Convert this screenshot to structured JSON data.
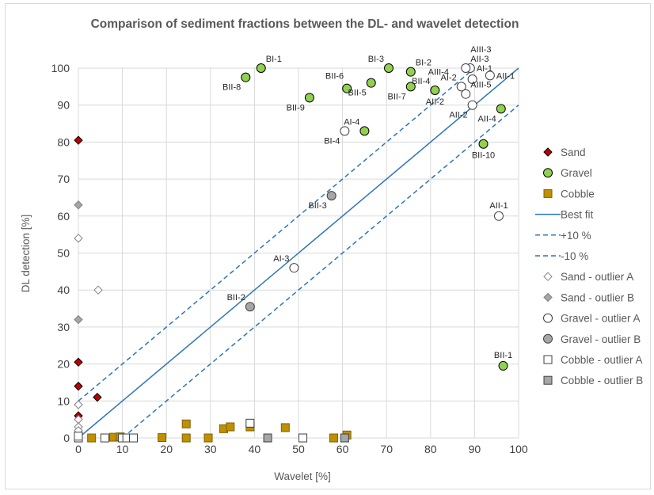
{
  "chart_data": {
    "type": "scatter",
    "title": "Comparison of sediment fractions between the DL- and wavelet detection",
    "xlabel": "Wavelet [%]",
    "ylabel": "DL detection [%]",
    "xlim": [
      0,
      100
    ],
    "ylim": [
      0,
      100
    ],
    "x_ticks": [
      "0",
      "10",
      "20",
      "30",
      "40",
      "50",
      "60",
      "70",
      "80",
      "90",
      "100"
    ],
    "y_ticks": [
      "0",
      "10",
      "20",
      "30",
      "40",
      "50",
      "60",
      "70",
      "80",
      "90",
      "100"
    ],
    "grid": true,
    "legend_position": "right",
    "series": [
      {
        "name": "Sand",
        "marker": "diamond",
        "fill": "#c00000",
        "stroke": "#000000",
        "points": [
          [
            0,
            80.5
          ],
          [
            0,
            20.5
          ],
          [
            0,
            14
          ],
          [
            4.3,
            11
          ],
          [
            0,
            6
          ]
        ]
      },
      {
        "name": "Gravel",
        "marker": "circle",
        "fill": "#92d050",
        "stroke": "#000000",
        "points": [
          [
            38,
            97.5
          ],
          [
            41.5,
            100
          ],
          [
            52.5,
            92
          ],
          [
            61,
            94.5
          ],
          [
            66.5,
            96
          ],
          [
            65,
            83
          ],
          [
            70.5,
            100
          ],
          [
            75.5,
            99
          ],
          [
            75.5,
            95
          ],
          [
            81,
            94
          ],
          [
            96,
            89
          ],
          [
            92,
            79.5
          ],
          [
            96.5,
            19.5
          ]
        ]
      },
      {
        "name": "Cobble",
        "marker": "square",
        "fill": "#bf9000",
        "stroke": "#7f6000",
        "points": [
          [
            3,
            0
          ],
          [
            8,
            0.2
          ],
          [
            9.5,
            0.3
          ],
          [
            19,
            0.1
          ],
          [
            24.5,
            0
          ],
          [
            24.5,
            3.8
          ],
          [
            29.5,
            0
          ],
          [
            33,
            2.5
          ],
          [
            34.5,
            3
          ],
          [
            39,
            3
          ],
          [
            47,
            2.8
          ],
          [
            58,
            0
          ],
          [
            61,
            0.8
          ]
        ]
      },
      {
        "name": "Best fit",
        "line": "solid",
        "color": "#2e75b6",
        "points": [
          [
            0,
            0
          ],
          [
            100,
            100
          ]
        ]
      },
      {
        "name": "+10 %",
        "line": "dashed",
        "color": "#2e75b6",
        "points": [
          [
            0,
            10
          ],
          [
            90,
            100
          ]
        ]
      },
      {
        "name": "-10 %",
        "line": "dashed",
        "color": "#2e75b6",
        "points": [
          [
            10,
            0
          ],
          [
            100,
            90
          ]
        ]
      },
      {
        "name": "Sand - outlier A",
        "marker": "diamond",
        "fill": "#ffffff",
        "stroke": "#7f7f7f",
        "points": [
          [
            0,
            54
          ],
          [
            4.5,
            40
          ],
          [
            0,
            9
          ],
          [
            0,
            5
          ],
          [
            0,
            3
          ],
          [
            0,
            2
          ]
        ]
      },
      {
        "name": "Sand - outlier B",
        "marker": "diamond",
        "fill": "#a6a6a6",
        "stroke": "#7f7f7f",
        "points": [
          [
            0,
            63
          ],
          [
            0,
            32
          ]
        ]
      },
      {
        "name": "Gravel - outlier A",
        "marker": "circle",
        "fill": "#ffffff",
        "stroke": "#404040",
        "points": [
          [
            60.5,
            83
          ],
          [
            49,
            46
          ],
          [
            87,
            95
          ],
          [
            88,
            93
          ],
          [
            89.5,
            90
          ],
          [
            89.5,
            97
          ],
          [
            93.5,
            98
          ],
          [
            89,
            100
          ],
          [
            88,
            100
          ],
          [
            95.5,
            60
          ]
        ]
      },
      {
        "name": "Gravel - outlier B",
        "marker": "circle",
        "fill": "#a6a6a6",
        "stroke": "#404040",
        "points": [
          [
            57.5,
            65.5
          ],
          [
            39,
            35.5
          ]
        ]
      },
      {
        "name": "Cobble - outlier A",
        "marker": "square",
        "fill": "#ffffff",
        "stroke": "#404040",
        "points": [
          [
            0,
            0
          ],
          [
            0,
            0.5
          ],
          [
            6,
            0
          ],
          [
            10,
            0
          ],
          [
            11,
            0
          ],
          [
            12.5,
            0
          ],
          [
            39,
            4
          ],
          [
            51,
            0
          ]
        ]
      },
      {
        "name": "Cobble - outlier B",
        "marker": "square",
        "fill": "#a6a6a6",
        "stroke": "#404040",
        "points": [
          [
            43,
            0
          ],
          [
            60.5,
            0
          ]
        ]
      }
    ],
    "annotations": [
      {
        "text": "BI-1",
        "x": 41.5,
        "y": 100,
        "pos": "ur"
      },
      {
        "text": "BII-8",
        "x": 38,
        "y": 97.5,
        "pos": "bl"
      },
      {
        "text": "BII-9",
        "x": 52.5,
        "y": 92,
        "pos": "bl"
      },
      {
        "text": "BII-6",
        "x": 61,
        "y": 94.5,
        "pos": "tl"
      },
      {
        "text": "BII-5",
        "x": 66.5,
        "y": 96,
        "pos": "bl"
      },
      {
        "text": "BI-3",
        "x": 70.5,
        "y": 100,
        "pos": "ul"
      },
      {
        "text": "BI-2",
        "x": 75.5,
        "y": 99,
        "pos": "ur"
      },
      {
        "text": "AIII-4",
        "x": 78,
        "y": 99,
        "pos": "r"
      },
      {
        "text": "BII-7",
        "x": 75.5,
        "y": 95,
        "pos": "bl"
      },
      {
        "text": "BII-4",
        "x": 81,
        "y": 94,
        "pos": "ul"
      },
      {
        "text": "AII-2",
        "x": 81,
        "y": 94,
        "pos": "b"
      },
      {
        "text": "AI-4",
        "x": 65,
        "y": 83,
        "pos": "ul"
      },
      {
        "text": "BI-4",
        "x": 60.5,
        "y": 83,
        "pos": "bl"
      },
      {
        "text": "AIII-3",
        "x": 88,
        "y": 100,
        "pos": "ur2"
      },
      {
        "text": "AII-3",
        "x": 88,
        "y": 100,
        "pos": "ur"
      },
      {
        "text": "AI-1",
        "x": 89,
        "y": 100,
        "pos": "r"
      },
      {
        "text": "AI-2",
        "x": 87,
        "y": 95,
        "pos": "ul"
      },
      {
        "text": "AII-1",
        "x": 93.5,
        "y": 98,
        "pos": "r"
      },
      {
        "text": "AIII-5",
        "x": 88,
        "y": 93,
        "pos": "ur"
      },
      {
        "text": "AII-2",
        "x": 89.5,
        "y": 90,
        "pos": "bl"
      },
      {
        "text": "AII-4",
        "x": 96,
        "y": 89,
        "pos": "bl"
      },
      {
        "text": "BII-10",
        "x": 92,
        "y": 79.5,
        "pos": "b"
      },
      {
        "text": "AII-1",
        "x": 95.5,
        "y": 60,
        "pos": "u"
      },
      {
        "text": "BII-3",
        "x": 57.5,
        "y": 65.5,
        "pos": "bl"
      },
      {
        "text": "AI-3",
        "x": 49,
        "y": 46,
        "pos": "ul"
      },
      {
        "text": "BII-2",
        "x": 39,
        "y": 35.5,
        "pos": "ul"
      },
      {
        "text": "BII-1",
        "x": 96.5,
        "y": 19.5,
        "pos": "u"
      }
    ]
  }
}
